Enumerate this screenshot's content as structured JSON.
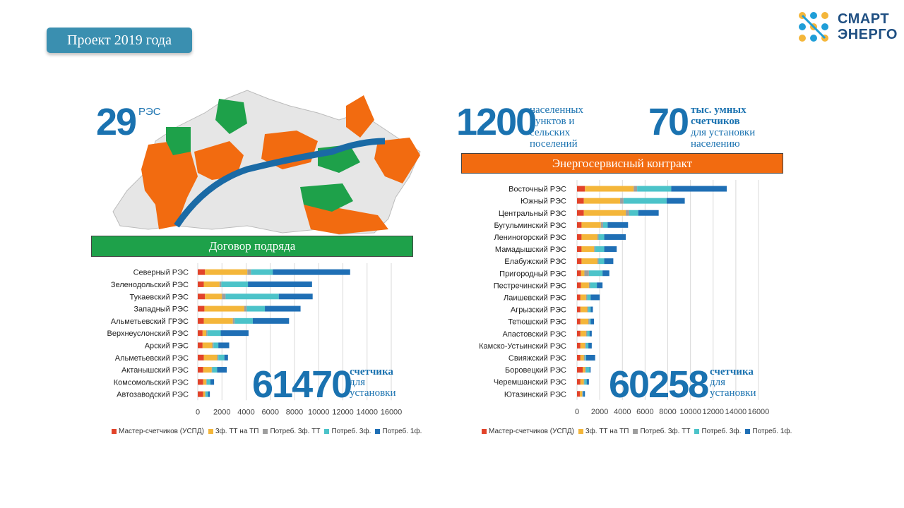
{
  "header": {
    "tag": "Проект 2019 года"
  },
  "logo": {
    "line1": "СМАРТ",
    "line2": "ЭНЕРГО"
  },
  "left": {
    "res_count": "29",
    "res_label": "РЭС",
    "banner": "Договор подряда",
    "banner_color": "#1ea14a",
    "total": "61470",
    "total_label": [
      "счетчика",
      "для",
      "установки"
    ]
  },
  "right": {
    "settlements": "1200",
    "settlements_label": [
      "населенных",
      "пунктов и",
      "сельских",
      "поселений"
    ],
    "meters": "70",
    "meters_label_bold": [
      "тыс. умных",
      "счетчиков"
    ],
    "meters_label": [
      "для установки",
      "населению"
    ],
    "banner": "Энергосервисный контракт",
    "banner_color": "#f26b10",
    "total": "60258",
    "total_label": [
      "счетчика",
      "для",
      "установки"
    ]
  },
  "colors": {
    "master": "#e2432a",
    "tt3": "#f4b63a",
    "potr3tt": "#9e9e9e",
    "potr3": "#4cc3c9",
    "potr1": "#1f6fb5"
  },
  "chart_data": [
    {
      "type": "bar",
      "orientation": "horizontal",
      "stacked": true,
      "categories": [
        "Северный РЭС",
        "Зеленодольский РЭС",
        "Тукаевский РЭС",
        "Западный РЭС",
        "Альметьевский ГРЭС",
        "Верхнеуслонский РЭС",
        "Арский РЭС",
        "Альметьевский РЭС",
        "Актанышский РЭС",
        "Комсомольский РЭС",
        "Автозаводский РЭС"
      ],
      "series": [
        {
          "name": "Мастер-счетчиков (УСПД)",
          "values": [
            600,
            500,
            600,
            550,
            500,
            400,
            400,
            500,
            450,
            450,
            450
          ]
        },
        {
          "name": "3ф. ТТ на ТП",
          "values": [
            3500,
            1300,
            1400,
            3300,
            2400,
            300,
            800,
            1100,
            700,
            250,
            150
          ]
        },
        {
          "name": "Потреб. 3ф. ТТ",
          "values": [
            300,
            150,
            300,
            200,
            150,
            100,
            100,
            100,
            50,
            50,
            50
          ]
        },
        {
          "name": "Потреб. 3ф.",
          "values": [
            1800,
            2200,
            4400,
            1500,
            1500,
            1100,
            400,
            500,
            400,
            300,
            200
          ]
        },
        {
          "name": "Потреб. 1ф.",
          "values": [
            6400,
            5300,
            2800,
            2950,
            3000,
            2300,
            900,
            300,
            800,
            300,
            150
          ]
        }
      ],
      "xlim": [
        0,
        16000
      ],
      "xticks": [
        "0",
        "2000",
        "4000",
        "6000",
        "8000",
        "10000",
        "12000",
        "14000",
        "16000"
      ],
      "legend": "bottom",
      "grid": true
    },
    {
      "type": "bar",
      "orientation": "horizontal",
      "stacked": true,
      "categories": [
        "Восточный РЭС",
        "Южный РЭС",
        "Центральный РЭС",
        "Бугульминский РЭС",
        "Лениногорский РЭС",
        "Мамадышский РЭС",
        "Елабужский РЭС",
        "Пригородный РЭС",
        "Пестречинский РЭС",
        "Лаишевский РЭС",
        "Агрызский РЭС",
        "Тетюшский РЭС",
        "Апастовский РЭС",
        "Камско-Устьинский РЭС",
        "Свияжский РЭС",
        "Боровецкий РЭС",
        "Черемшанский РЭС",
        "Ютазинский РЭС"
      ],
      "series": [
        {
          "name": "Мастер-счетчиков (УСПД)",
          "values": [
            700,
            600,
            600,
            400,
            400,
            400,
            400,
            350,
            350,
            300,
            300,
            300,
            300,
            300,
            300,
            500,
            300,
            250
          ]
        },
        {
          "name": "3ф. ТТ на ТП",
          "values": [
            4300,
            3200,
            3700,
            1700,
            1400,
            1100,
            1400,
            300,
            700,
            500,
            600,
            700,
            500,
            400,
            300,
            200,
            300,
            200
          ]
        },
        {
          "name": "Потреб. 3ф. ТТ",
          "values": [
            300,
            300,
            300,
            200,
            100,
            100,
            100,
            400,
            100,
            100,
            100,
            100,
            100,
            100,
            100,
            100,
            50,
            50
          ]
        },
        {
          "name": "Потреб. 3ф.",
          "values": [
            3000,
            3800,
            800,
            400,
            500,
            800,
            500,
            1200,
            600,
            300,
            200,
            100,
            200,
            200,
            100,
            300,
            200,
            50
          ]
        },
        {
          "name": "Потреб. 1ф.",
          "values": [
            4900,
            1600,
            1800,
            1800,
            1900,
            1100,
            800,
            600,
            500,
            800,
            200,
            300,
            200,
            300,
            800,
            100,
            200,
            150
          ]
        }
      ],
      "xlim": [
        0,
        16000
      ],
      "xticks": [
        "0",
        "2000",
        "4000",
        "6000",
        "8000",
        "10000",
        "12000",
        "14000",
        "16000"
      ],
      "legend": "bottom",
      "grid": true
    }
  ]
}
